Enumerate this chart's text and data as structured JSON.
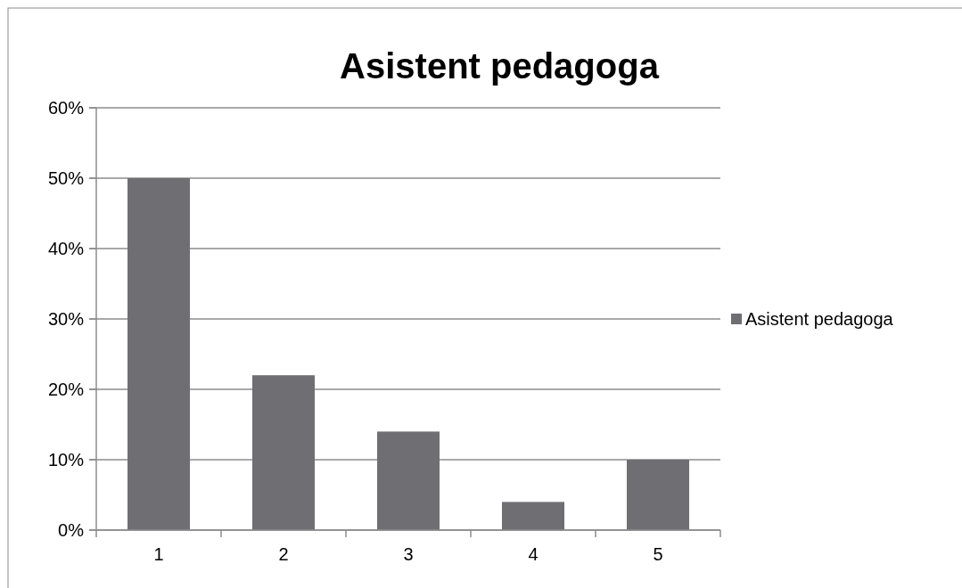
{
  "chart_data": {
    "type": "bar",
    "title": "Asistent pedagoga",
    "categories": [
      "1",
      "2",
      "3",
      "4",
      "5"
    ],
    "series": [
      {
        "name": "Asistent pedagoga",
        "color": "#6f6e73",
        "values": [
          50,
          22,
          14,
          4,
          10
        ]
      }
    ],
    "ylim": [
      0,
      60
    ],
    "yticks": [
      {
        "value": 0,
        "label": "0%"
      },
      {
        "value": 10,
        "label": "10%"
      },
      {
        "value": 20,
        "label": "20%"
      },
      {
        "value": 30,
        "label": "30%"
      },
      {
        "value": 40,
        "label": "40%"
      },
      {
        "value": 50,
        "label": "50%"
      },
      {
        "value": 60,
        "label": "60%"
      }
    ],
    "grid": "y",
    "legend": "right"
  }
}
